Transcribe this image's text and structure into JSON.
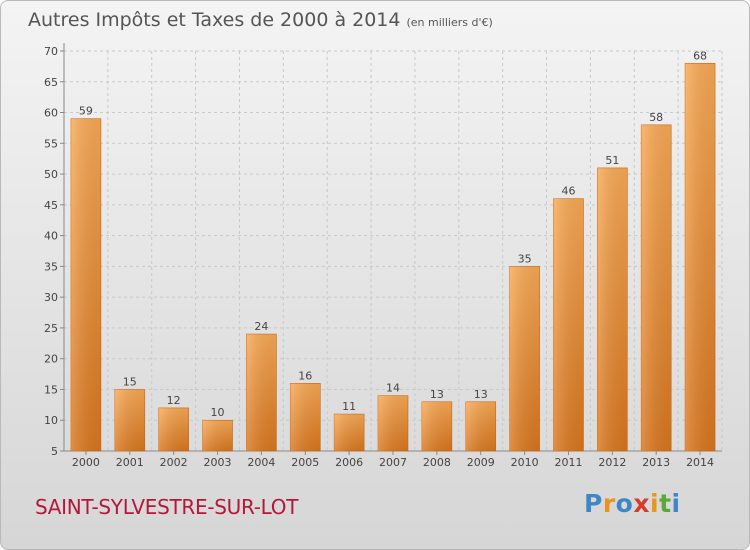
{
  "header": {
    "title": "Autres Impôts et Taxes de 2000 à 2014",
    "unit": "(en milliers d'€)"
  },
  "footer": {
    "place": "SAINT-SYLVESTRE-SUR-LOT",
    "logo_letters": [
      "P",
      "r",
      "o",
      "x",
      "i",
      "t",
      "i"
    ]
  },
  "colors": {
    "bar_light": "#f8a955",
    "bar_dark": "#d9761e",
    "grid": "#c9c9c9",
    "axis_text": "#444444",
    "place_text": "#b5173a"
  },
  "chart_data": {
    "type": "bar",
    "title": "Autres Impôts et Taxes de 2000 à 2014",
    "subtitle": "(en milliers d'€)",
    "categories": [
      "2000",
      "2001",
      "2002",
      "2003",
      "2004",
      "2005",
      "2006",
      "2007",
      "2008",
      "2009",
      "2010",
      "2011",
      "2012",
      "2013",
      "2014"
    ],
    "values": [
      59,
      15,
      12,
      10,
      24,
      16,
      11,
      14,
      13,
      13,
      35,
      46,
      51,
      58,
      68
    ],
    "ylim": [
      5,
      70
    ],
    "yticks": [
      5,
      10,
      15,
      20,
      25,
      30,
      35,
      40,
      45,
      50,
      55,
      60,
      65,
      70
    ],
    "grid": true,
    "data_labels": true
  }
}
